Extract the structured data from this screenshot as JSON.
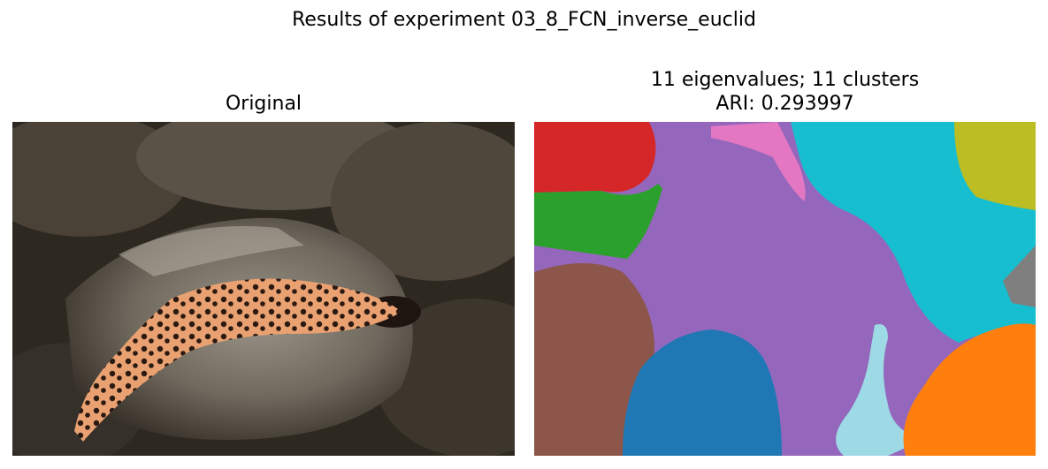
{
  "figure": {
    "suptitle": "Results of experiment 03_8_FCN_inverse_euclid"
  },
  "left_panel": {
    "title": "Original",
    "image_subject": "gila-monster-lizard-on-rock"
  },
  "right_panel": {
    "title_line1": "11 eigenvalues; 11 clusters",
    "title_line2": "ARI: 0.293997",
    "cluster_colors": [
      "#d62728",
      "#2ca02c",
      "#9467bd",
      "#e377c2",
      "#17becf",
      "#bcbd22",
      "#7f7f7f",
      "#8c564b",
      "#1f77b4",
      "#9edae5",
      "#ff7f0e"
    ]
  }
}
